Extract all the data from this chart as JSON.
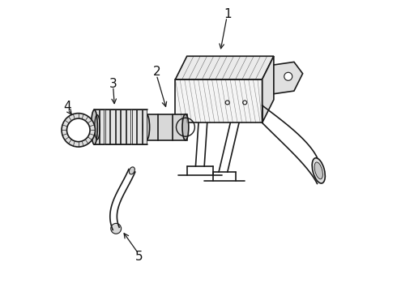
{
  "background_color": "#ffffff",
  "line_color": "#1a1a1a",
  "line_width": 1.2,
  "label_color": "#111111",
  "label_fontsize": 11,
  "figsize": [
    4.9,
    3.6
  ],
  "dpi": 100
}
